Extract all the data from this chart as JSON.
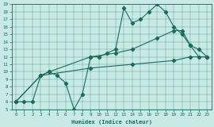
{
  "xlabel": "Humidex (Indice chaleur)",
  "bg_color": "#c8eae4",
  "line_color": "#1a6b5e",
  "xlim": [
    -0.5,
    23.5
  ],
  "ylim": [
    5,
    19
  ],
  "xticks": [
    0,
    1,
    2,
    3,
    4,
    5,
    6,
    7,
    8,
    9,
    10,
    11,
    12,
    13,
    14,
    15,
    16,
    17,
    18,
    19,
    20,
    21,
    22,
    23
  ],
  "yticks": [
    5,
    6,
    7,
    8,
    9,
    10,
    11,
    12,
    13,
    14,
    15,
    16,
    17,
    18,
    19
  ],
  "line1_x": [
    0,
    1,
    2,
    3,
    4,
    5,
    6,
    7,
    8,
    9,
    10,
    11,
    12,
    13,
    14,
    15,
    16,
    17,
    18,
    19,
    20,
    21,
    22,
    23
  ],
  "line1_y": [
    6,
    6,
    6,
    9.5,
    10,
    9.5,
    8.5,
    5,
    7,
    12,
    12,
    12.5,
    13,
    18.5,
    16.5,
    17,
    18,
    19,
    18,
    16,
    15,
    13.5,
    12,
    12
  ],
  "line2_x": [
    0,
    3,
    4,
    9,
    12,
    14,
    17,
    19,
    20,
    21,
    22,
    23
  ],
  "line2_y": [
    6,
    9.5,
    10,
    12,
    12.5,
    13,
    14.5,
    15.5,
    15.5,
    13.5,
    13,
    12
  ],
  "line3_x": [
    0,
    3,
    9,
    14,
    19,
    21,
    23
  ],
  "line3_y": [
    6,
    9.5,
    10.5,
    11,
    11.5,
    12,
    12
  ]
}
